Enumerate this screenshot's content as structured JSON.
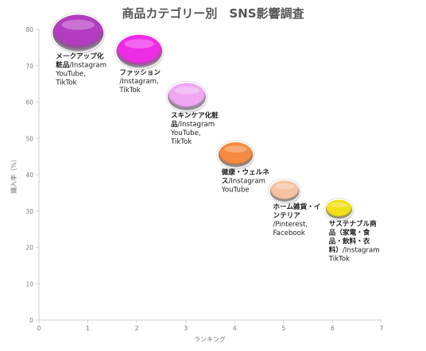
{
  "chart_data": {
    "type": "bubble",
    "title": "商品カテゴリー別　SNS影響調査",
    "xlabel": "ランキング",
    "ylabel": "購入率（%）",
    "xlim": [
      0,
      7
    ],
    "ylim": [
      0,
      80
    ],
    "xticks": [
      "0",
      "1",
      "2",
      "3",
      "4",
      "5",
      "6",
      "7"
    ],
    "yticks": [
      "0",
      "10",
      "20",
      "30",
      "40",
      "50",
      "60",
      "70",
      "80"
    ],
    "grid": false,
    "points": [
      {
        "category": "メークアップ化粧品",
        "sns": "/Instagram YouTube, TikTok",
        "x": 0.8,
        "y": 79,
        "size": 1.0,
        "color": "#b43cc0",
        "label_lines": [
          {
            "bold": "メークアップ化",
            "rest": ""
          },
          {
            "bold": "粧品",
            "rest": "/Instagram"
          },
          {
            "bold": "",
            "rest": "YouTube,"
          },
          {
            "bold": "",
            "rest": "TikTok"
          }
        ]
      },
      {
        "category": "ファッション",
        "sns": "/Instagram, TikTok",
        "x": 2.05,
        "y": 74,
        "size": 0.9,
        "color": "#ee2ce6",
        "label_lines": [
          {
            "bold": "ファッション",
            "rest": ""
          },
          {
            "bold": "",
            "rest": "/Instagram,"
          },
          {
            "bold": "",
            "rest": "TikTok"
          }
        ]
      },
      {
        "category": "スキンケア化粧品",
        "sns": "/Instagram YouTube, TikTok",
        "x": 3.02,
        "y": 61.5,
        "size": 0.75,
        "color": "#f0a8f2",
        "label_lines": [
          {
            "bold": "スキンケア化粧",
            "rest": ""
          },
          {
            "bold": "品",
            "rest": "/Instagram"
          },
          {
            "bold": "",
            "rest": "YouTube,"
          },
          {
            "bold": "",
            "rest": "TikTok"
          }
        ]
      },
      {
        "category": "健康・ウェルネス",
        "sns": "/Instagram YouTube",
        "x": 4.02,
        "y": 45.5,
        "size": 0.68,
        "color": "#f58a40",
        "label_lines": [
          {
            "bold": "健康・ウェルネ",
            "rest": ""
          },
          {
            "bold": "ス",
            "rest": "/Instagram"
          },
          {
            "bold": "",
            "rest": "YouTube"
          }
        ]
      },
      {
        "category": "ホーム雑貨・インテリア",
        "sns": "/Pinterest, Facebook",
        "x": 5.02,
        "y": 35.5,
        "size": 0.58,
        "color": "#f6c2a2",
        "label_lines": [
          {
            "bold": "ホーム雑貨・イ",
            "rest": ""
          },
          {
            "bold": "ンテリア",
            "rest": ""
          },
          {
            "bold": "",
            "rest": "/Pinterest,"
          },
          {
            "bold": "",
            "rest": "Facebook"
          }
        ]
      },
      {
        "category": "サステナブル商品（家電・食品・飲料・衣料）",
        "sns": "/Instagram TikTok",
        "x": 6.13,
        "y": 30.5,
        "size": 0.52,
        "color": "#f2e018",
        "label_lines": [
          {
            "bold": "サステナブル商",
            "rest": ""
          },
          {
            "bold": "品（家電・食",
            "rest": ""
          },
          {
            "bold": "品・飲料・衣",
            "rest": ""
          },
          {
            "bold": "料）",
            "rest": "/Instagram"
          },
          {
            "bold": "",
            "rest": "TikTok"
          }
        ]
      }
    ]
  }
}
